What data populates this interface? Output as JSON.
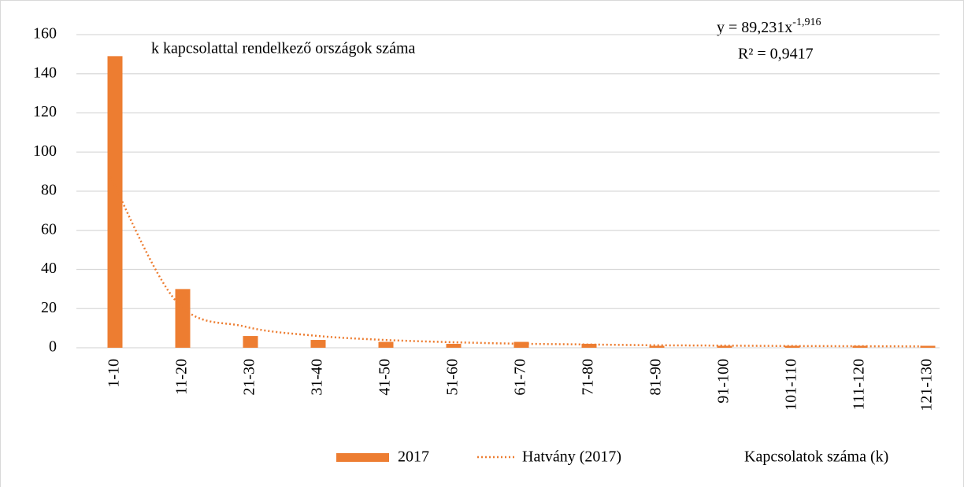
{
  "chart_data": {
    "type": "bar",
    "annotation": "k kapcsolattal rendelkező országok száma",
    "equation": "y = 89,231x",
    "equation_exponent": "-1,916",
    "r_squared": "R² = 0,9417",
    "x_label": "Kapcsolatok száma (k)",
    "categories": [
      "1-10",
      "11-20",
      "21-30",
      "31-40",
      "41-50",
      "51-60",
      "61-70",
      "71-80",
      "81-90",
      "91-100",
      "101-110",
      "111-120",
      "121-130"
    ],
    "series": [
      {
        "name": "2017",
        "color": "#ed7d31",
        "values": [
          149,
          30,
          6,
          4,
          3,
          2,
          3,
          2,
          1,
          1,
          1,
          1,
          1
        ]
      },
      {
        "name": "Hatvány (2017)",
        "color": "#ed7d31",
        "style": "dotted",
        "values": [
          89.2,
          23.6,
          10.9,
          6.3,
          4.1,
          2.9,
          2.1,
          1.7,
          1.3,
          1.1,
          0.9,
          0.8,
          0.7
        ]
      }
    ],
    "ylim": [
      0,
      160
    ],
    "yticks": [
      0,
      20,
      40,
      60,
      80,
      100,
      120,
      140,
      160
    ],
    "grid": true
  }
}
